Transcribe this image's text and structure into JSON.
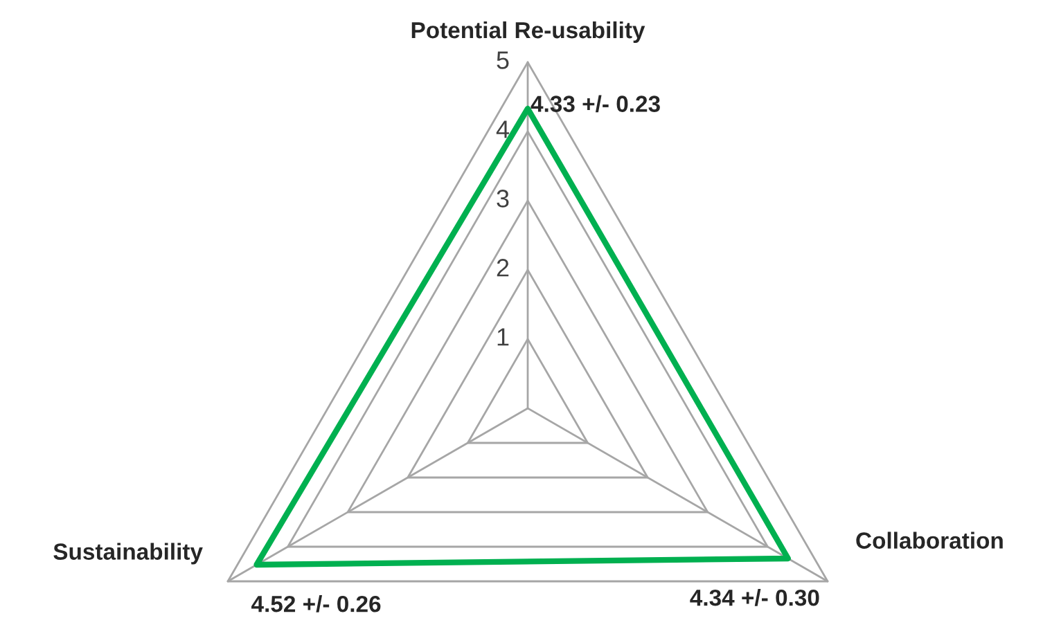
{
  "chart_data": {
    "type": "radar",
    "categories": [
      "Potential Re-usability",
      "Collaboration",
      "Sustainability"
    ],
    "series": [
      {
        "color": "#00b050",
        "values": [
          4.33,
          4.34,
          4.52
        ],
        "value_labels": [
          "4.33 +/- 0.23",
          "4.34 +/- 0.30",
          "4.52 +/- 0.26"
        ]
      }
    ],
    "ylim": [
      0,
      5
    ],
    "yticks": [
      1,
      2,
      3,
      4,
      5
    ],
    "grid": true
  }
}
